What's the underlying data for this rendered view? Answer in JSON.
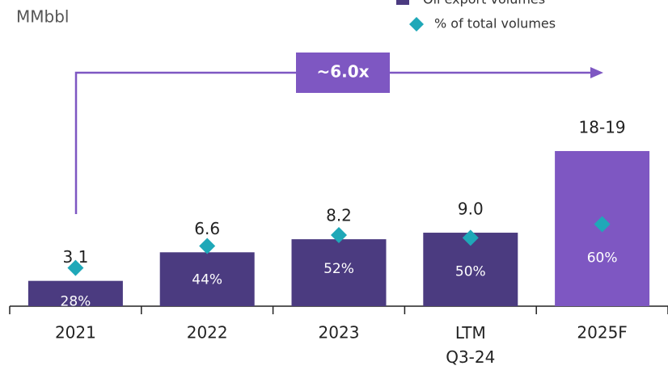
{
  "chart_data": {
    "type": "bar",
    "title": "MMbbl",
    "annotation": "~6.0x",
    "categories": [
      "2021",
      "2022",
      "2023",
      "LTM Q3-24",
      "2025F"
    ],
    "series": [
      {
        "name": "Oil export volumes",
        "color": "#4b3b80",
        "colors": [
          "#4b3b80",
          "#4b3b80",
          "#4b3b80",
          "#4b3b80",
          "#7e57c2"
        ],
        "values": [
          3.1,
          6.6,
          8.2,
          9.0,
          19
        ],
        "value_labels": [
          "3.1",
          "6.6",
          "8.2",
          "9.0",
          "18-19"
        ]
      },
      {
        "name": "% of total volumes",
        "color": "#1fa8b8",
        "axis": "y2",
        "values": [
          28,
          44,
          52,
          50,
          60
        ],
        "value_labels": [
          "28%",
          "44%",
          "52%",
          "50%",
          "60%"
        ]
      }
    ],
    "ylim": [
      0,
      37.5
    ],
    "y2lim": [
      0,
      224
    ]
  }
}
